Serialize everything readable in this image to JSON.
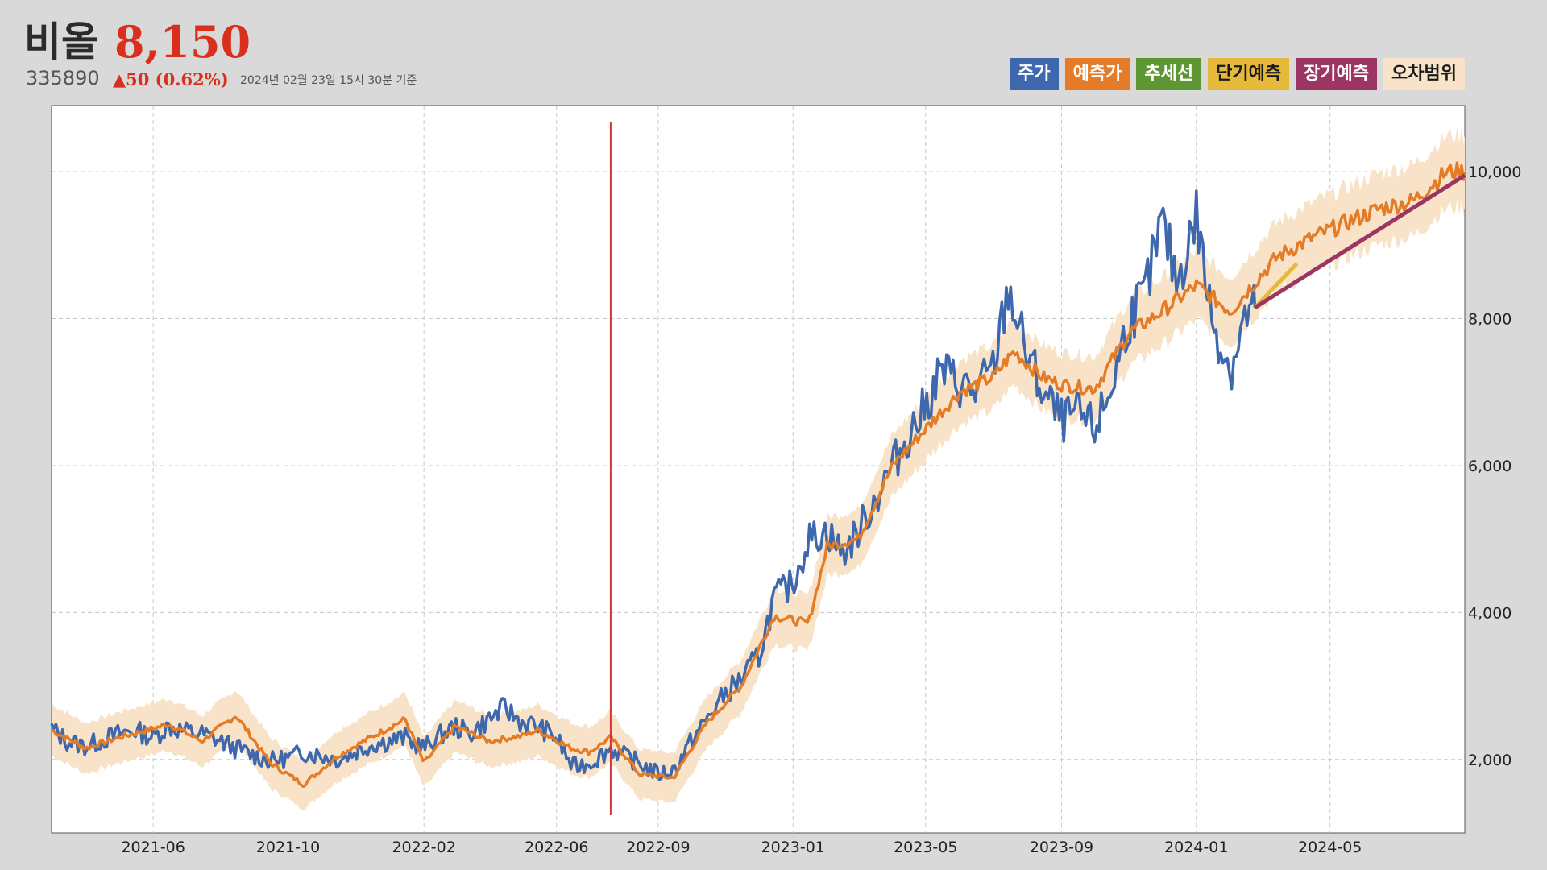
{
  "header": {
    "name": "비올",
    "price": "8,150",
    "code": "335890",
    "change": "▲50 (0.62%)",
    "timestamp": "2024년 02월 23일 15시 30분 기준"
  },
  "legend": [
    {
      "label": "주가",
      "color": "#3d68ad",
      "text_color": "#ffffff"
    },
    {
      "label": "예측가",
      "color": "#e47b26",
      "text_color": "#ffffff"
    },
    {
      "label": "추세선",
      "color": "#5f9634",
      "text_color": "#ffffff"
    },
    {
      "label": "단기예측",
      "color": "#e6b93a",
      "text_color": "#1a1a1a"
    },
    {
      "label": "장기예측",
      "color": "#9c3561",
      "text_color": "#ffffff"
    },
    {
      "label": "오차범위",
      "color": "#f8e3c8",
      "text_color": "#1a1a1a"
    }
  ],
  "chart_data": {
    "type": "line",
    "x_start": "2021-03-01",
    "x_end": "2024-08-31",
    "ylim": [
      1000,
      10900
    ],
    "yticks": [
      2000,
      4000,
      6000,
      8000,
      10000
    ],
    "ytick_labels": [
      "2,000",
      "4,000",
      "6,000",
      "8,000",
      "10,000"
    ],
    "xticks": [
      "2021-06",
      "2021-10",
      "2022-02",
      "2022-06",
      "2022-09",
      "2023-01",
      "2023-05",
      "2023-09",
      "2024-01",
      "2024-05"
    ],
    "grid": true,
    "marker_date": "2022-07-20",
    "colors": {
      "price": "#3d68ad",
      "forecast": "#e47b26",
      "short_term": "#e6b93a",
      "long_term": "#9c3561",
      "band": "#f8e3c8",
      "marker": "#d4343c"
    },
    "price": [
      [
        "2021-03-01",
        2420
      ],
      [
        "2021-03-15",
        2250
      ],
      [
        "2021-04-01",
        2180
      ],
      [
        "2021-04-15",
        2260
      ],
      [
        "2021-05-01",
        2350
      ],
      [
        "2021-05-15",
        2400
      ],
      [
        "2021-06-01",
        2300
      ],
      [
        "2021-06-15",
        2450
      ],
      [
        "2021-07-01",
        2380
      ],
      [
        "2021-07-15",
        2350
      ],
      [
        "2021-08-01",
        2250
      ],
      [
        "2021-08-15",
        2150
      ],
      [
        "2021-09-01",
        2050
      ],
      [
        "2021-09-15",
        1980
      ],
      [
        "2021-10-01",
        2020
      ],
      [
        "2021-10-15",
        2100
      ],
      [
        "2021-11-01",
        2050
      ],
      [
        "2021-11-15",
        2000
      ],
      [
        "2021-12-01",
        2100
      ],
      [
        "2021-12-15",
        2200
      ],
      [
        "2022-01-01",
        2250
      ],
      [
        "2022-01-15",
        2300
      ],
      [
        "2022-02-01",
        2150
      ],
      [
        "2022-02-15",
        2320
      ],
      [
        "2022-03-01",
        2450
      ],
      [
        "2022-03-15",
        2350
      ],
      [
        "2022-04-01",
        2550
      ],
      [
        "2022-04-15",
        2700
      ],
      [
        "2022-05-01",
        2500
      ],
      [
        "2022-05-15",
        2450
      ],
      [
        "2022-06-01",
        2300
      ],
      [
        "2022-06-15",
        1900
      ],
      [
        "2022-07-01",
        1950
      ],
      [
        "2022-07-20",
        2150
      ],
      [
        "2022-08-01",
        2050
      ],
      [
        "2022-08-15",
        1950
      ],
      [
        "2022-09-01",
        1800
      ],
      [
        "2022-09-15",
        1850
      ],
      [
        "2022-10-01",
        2250
      ],
      [
        "2022-10-15",
        2550
      ],
      [
        "2022-11-01",
        2900
      ],
      [
        "2022-11-15",
        3100
      ],
      [
        "2022-12-01",
        3400
      ],
      [
        "2022-12-15",
        4200
      ],
      [
        "2023-01-01",
        4400
      ],
      [
        "2023-01-15",
        5000
      ],
      [
        "2023-02-01",
        5100
      ],
      [
        "2023-02-15",
        4800
      ],
      [
        "2023-03-01",
        5100
      ],
      [
        "2023-03-15",
        5500
      ],
      [
        "2023-04-01",
        6000
      ],
      [
        "2023-04-15",
        6400
      ],
      [
        "2023-05-01",
        6800
      ],
      [
        "2023-05-15",
        7300
      ],
      [
        "2023-06-01",
        7100
      ],
      [
        "2023-06-15",
        7000
      ],
      [
        "2023-07-01",
        7300
      ],
      [
        "2023-07-15",
        8400
      ],
      [
        "2023-08-01",
        7500
      ],
      [
        "2023-08-15",
        7000
      ],
      [
        "2023-09-01",
        6600
      ],
      [
        "2023-09-15",
        6700
      ],
      [
        "2023-10-01",
        6500
      ],
      [
        "2023-10-15",
        7000
      ],
      [
        "2023-11-01",
        8000
      ],
      [
        "2023-11-15",
        8300
      ],
      [
        "2023-12-01",
        9300
      ],
      [
        "2023-12-15",
        8500
      ],
      [
        "2024-01-01",
        9400
      ],
      [
        "2024-01-15",
        8000
      ],
      [
        "2024-02-01",
        7300
      ],
      [
        "2024-02-15",
        8050
      ],
      [
        "2024-02-23",
        8150
      ]
    ],
    "forecast": [
      [
        "2021-03-01",
        2400
      ],
      [
        "2021-04-01",
        2150
      ],
      [
        "2021-05-01",
        2300
      ],
      [
        "2021-06-01",
        2420
      ],
      [
        "2021-06-15",
        2480
      ],
      [
        "2021-07-15",
        2250
      ],
      [
        "2021-08-15",
        2600
      ],
      [
        "2021-09-15",
        1950
      ],
      [
        "2021-10-15",
        1660
      ],
      [
        "2021-11-15",
        2050
      ],
      [
        "2021-12-15",
        2300
      ],
      [
        "2022-01-15",
        2550
      ],
      [
        "2022-02-01",
        1950
      ],
      [
        "2022-03-01",
        2450
      ],
      [
        "2022-04-01",
        2250
      ],
      [
        "2022-05-01",
        2320
      ],
      [
        "2022-05-15",
        2400
      ],
      [
        "2022-06-15",
        2150
      ],
      [
        "2022-07-01",
        2100
      ],
      [
        "2022-07-20",
        2300
      ],
      [
        "2022-08-15",
        1800
      ],
      [
        "2022-09-15",
        1750
      ],
      [
        "2022-10-15",
        2500
      ],
      [
        "2022-11-15",
        3000
      ],
      [
        "2022-12-15",
        3950
      ],
      [
        "2023-01-15",
        3850
      ],
      [
        "2023-02-01",
        4900
      ],
      [
        "2023-03-01",
        5000
      ],
      [
        "2023-04-01",
        6000
      ],
      [
        "2023-05-01",
        6500
      ],
      [
        "2023-06-01",
        7000
      ],
      [
        "2023-07-01",
        7200
      ],
      [
        "2023-07-20",
        7550
      ],
      [
        "2023-08-15",
        7200
      ],
      [
        "2023-09-01",
        7100
      ],
      [
        "2023-10-01",
        7050
      ],
      [
        "2023-11-01",
        7800
      ],
      [
        "2023-12-01",
        8100
      ],
      [
        "2024-01-01",
        8450
      ],
      [
        "2024-02-01",
        8100
      ],
      [
        "2024-02-23",
        8500
      ],
      [
        "2024-03-15",
        8850
      ],
      [
        "2024-04-15",
        9100
      ],
      [
        "2024-05-15",
        9300
      ],
      [
        "2024-06-15",
        9500
      ],
      [
        "2024-07-15",
        9600
      ],
      [
        "2024-08-15",
        10000
      ],
      [
        "2024-08-31",
        10000
      ]
    ],
    "band_width": 380,
    "short_term": [
      [
        "2024-02-23",
        8150
      ],
      [
        "2024-04-01",
        8750
      ]
    ],
    "long_term": [
      [
        "2024-02-23",
        8150
      ],
      [
        "2024-08-31",
        9950
      ]
    ]
  }
}
